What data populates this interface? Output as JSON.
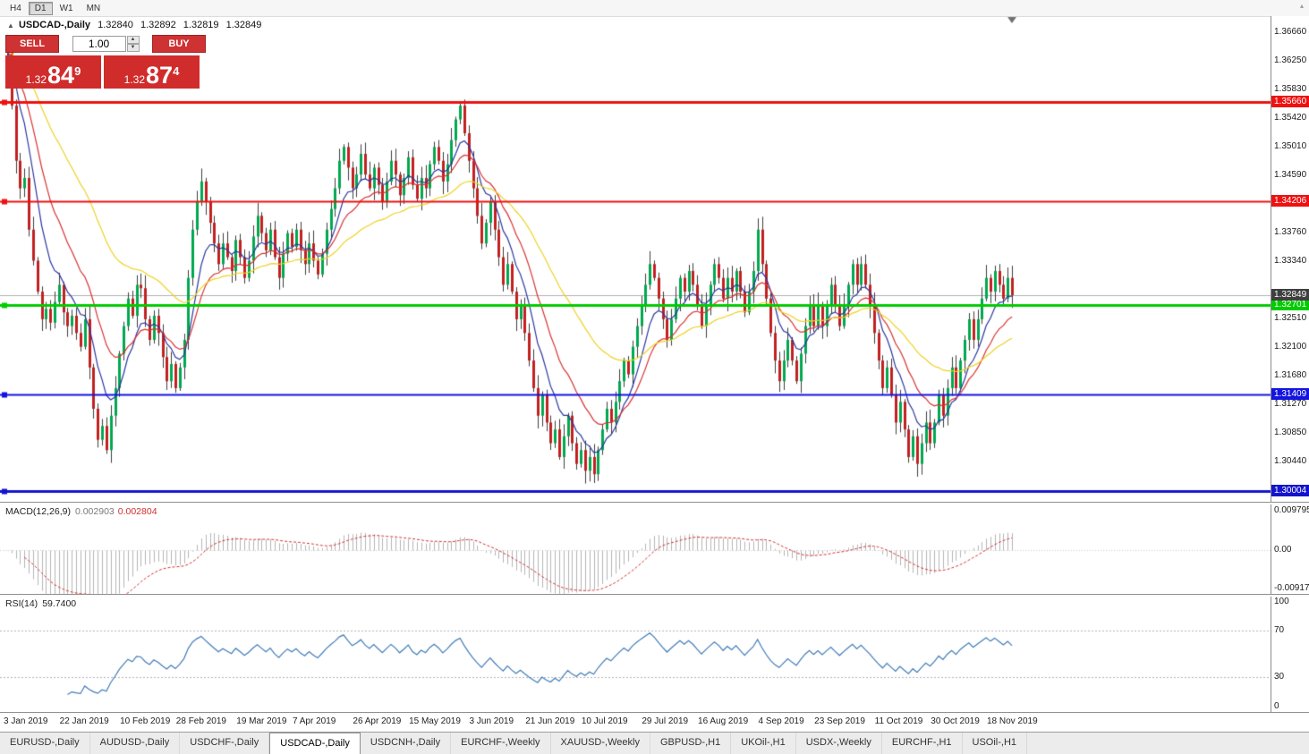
{
  "toolbar": {
    "timeframes": [
      {
        "label": "H4",
        "active": false
      },
      {
        "label": "D1",
        "active": true
      },
      {
        "label": "W1",
        "active": false
      },
      {
        "label": "MN",
        "active": false
      }
    ],
    "overflow_icon": "▴"
  },
  "chart_header": {
    "collapse_icon": "▲",
    "symbol": "USDCAD-,Daily",
    "open": "1.32840",
    "high": "1.32892",
    "low": "1.32819",
    "close": "1.32849"
  },
  "trade_panel": {
    "sell_label": "SELL",
    "buy_label": "BUY",
    "volume": "1.00",
    "spin_up_icon": "▲",
    "spin_down_icon": "▼",
    "sell_price_prefix": "1.32",
    "sell_price_big": "84",
    "sell_price_sup": "9",
    "buy_price_prefix": "1.32",
    "buy_price_big": "87",
    "buy_price_sup": "4"
  },
  "chart_data": {
    "type": "candlestick",
    "symbol": "USDCAD",
    "timeframe": "Daily",
    "up_color": "#00a84f",
    "down_color": "#c22020",
    "wick_color": "#3c3c3c",
    "price_range": {
      "top": 1.369,
      "bottom": 1.2985
    },
    "price_axis_ticks": [
      "1.36660",
      "1.36250",
      "1.35830",
      "1.35420",
      "1.35010",
      "1.34590",
      "1.33760",
      "1.33340",
      "1.32510",
      "1.32100",
      "1.31680",
      "1.31270",
      "1.30850",
      "1.30440"
    ],
    "price_lines": [
      {
        "price": 1.3566,
        "label": "1.35660",
        "color": "#ee1111",
        "width": 3
      },
      {
        "price": 1.34206,
        "label": "1.34206",
        "color": "#ee1111",
        "width": 2
      },
      {
        "price": 1.32701,
        "label": "1.32701",
        "color": "#00cc00",
        "width": 3
      },
      {
        "price": 1.31409,
        "label": "1.31409",
        "color": "#1414e0",
        "width": 2
      },
      {
        "price": 1.30004,
        "label": "1.30004",
        "color": "#1414cc",
        "width": 3
      }
    ],
    "current_price": {
      "value": 1.32849,
      "label": "1.32849",
      "line_color": "#b0b0b0",
      "badge_color": "#3f3f3f"
    },
    "ma": [
      {
        "period": 8,
        "type": "ema",
        "color": "#2a35a0"
      },
      {
        "period": 16,
        "type": "ema",
        "color": "#d93030"
      },
      {
        "period": 40,
        "type": "ema",
        "color": "#edd122"
      }
    ],
    "first_open": 1.3658,
    "closes": [
      1.364,
      1.356,
      1.348,
      1.344,
      1.3455,
      1.338,
      1.3335,
      1.329,
      1.325,
      1.3265,
      1.3245,
      1.3275,
      1.33,
      1.326,
      1.324,
      1.3255,
      1.323,
      1.321,
      1.325,
      1.318,
      1.312,
      1.3075,
      1.3095,
      1.306,
      1.311,
      1.315,
      1.32,
      1.324,
      1.328,
      1.3255,
      1.33,
      1.3295,
      1.325,
      1.322,
      1.3255,
      1.323,
      1.3195,
      1.316,
      1.3185,
      1.315,
      1.318,
      1.322,
      1.331,
      1.338,
      1.342,
      1.345,
      1.342,
      1.339,
      1.336,
      1.333,
      1.336,
      1.334,
      1.332,
      1.3365,
      1.334,
      1.331,
      1.3335,
      1.337,
      1.34,
      1.3375,
      1.335,
      1.338,
      1.334,
      1.331,
      1.3345,
      1.3375,
      1.3355,
      1.338,
      1.335,
      1.333,
      1.336,
      1.3335,
      1.3315,
      1.3345,
      1.338,
      1.341,
      1.344,
      1.348,
      1.35,
      1.347,
      1.344,
      1.346,
      1.349,
      1.346,
      1.344,
      1.347,
      1.3445,
      1.342,
      1.345,
      1.348,
      1.346,
      1.343,
      1.3455,
      1.3485,
      1.3445,
      1.3425,
      1.3455,
      1.344,
      1.3475,
      1.35,
      1.348,
      1.345,
      1.3475,
      1.351,
      1.354,
      1.356,
      1.352,
      1.348,
      1.344,
      1.34,
      1.336,
      1.339,
      1.342,
      1.338,
      1.334,
      1.33,
      1.333,
      1.329,
      1.325,
      1.327,
      1.323,
      1.319,
      1.315,
      1.311,
      1.314,
      1.31,
      1.307,
      1.309,
      1.305,
      1.308,
      1.311,
      1.307,
      1.304,
      1.306,
      1.303,
      1.305,
      1.3025,
      1.306,
      1.309,
      1.312,
      1.31,
      1.313,
      1.316,
      1.319,
      1.317,
      1.321,
      1.324,
      1.327,
      1.33,
      1.333,
      1.331,
      1.328,
      1.325,
      1.322,
      1.325,
      1.328,
      1.331,
      1.329,
      1.332,
      1.33,
      1.327,
      1.324,
      1.327,
      1.33,
      1.333,
      1.331,
      1.328,
      1.331,
      1.329,
      1.332,
      1.329,
      1.326,
      1.329,
      1.332,
      1.338,
      1.333,
      1.328,
      1.323,
      1.319,
      1.316,
      1.319,
      1.322,
      1.319,
      1.316,
      1.32,
      1.324,
      1.327,
      1.324,
      1.327,
      1.324,
      1.327,
      1.33,
      1.327,
      1.324,
      1.327,
      1.33,
      1.333,
      1.33,
      1.333,
      1.33,
      1.327,
      1.323,
      1.319,
      1.315,
      1.318,
      1.314,
      1.31,
      1.313,
      1.309,
      1.305,
      1.308,
      1.304,
      1.307,
      1.31,
      1.307,
      1.31,
      1.314,
      1.311,
      1.315,
      1.318,
      1.315,
      1.319,
      1.322,
      1.325,
      1.322,
      1.325,
      1.328,
      1.331,
      1.329,
      1.332,
      1.33,
      1.328,
      1.331,
      1.3285
    ],
    "date_labels": [
      {
        "idx": 0,
        "label": "3 Jan 2019"
      },
      {
        "idx": 13,
        "label": "22 Jan 2019"
      },
      {
        "idx": 27,
        "label": "10 Feb 2019"
      },
      {
        "idx": 40,
        "label": "28 Feb 2019"
      },
      {
        "idx": 54,
        "label": "19 Mar 2019"
      },
      {
        "idx": 67,
        "label": "7 Apr 2019"
      },
      {
        "idx": 81,
        "label": "26 Apr 2019"
      },
      {
        "idx": 94,
        "label": "15 May 2019"
      },
      {
        "idx": 108,
        "label": "3 Jun 2019"
      },
      {
        "idx": 121,
        "label": "21 Jun 2019"
      },
      {
        "idx": 134,
        "label": "10 Jul 2019"
      },
      {
        "idx": 148,
        "label": "29 Jul 2019"
      },
      {
        "idx": 161,
        "label": "16 Aug 2019"
      },
      {
        "idx": 175,
        "label": "4 Sep 2019"
      },
      {
        "idx": 188,
        "label": "23 Sep 2019"
      },
      {
        "idx": 202,
        "label": "11 Oct 2019"
      },
      {
        "idx": 215,
        "label": "30 Oct 2019"
      },
      {
        "idx": 228,
        "label": "18 Nov 2019"
      }
    ]
  },
  "macd_panel": {
    "title": "MACD(12,26,9)",
    "value_main": "0.002903",
    "value_signal": "0.002804",
    "params": {
      "fast": 12,
      "slow": 26,
      "signal": 9
    },
    "axis_labels": [
      "0.009795",
      "0.00",
      "-0.009178"
    ],
    "range": {
      "top": 0.009795,
      "bottom": -0.009178
    },
    "histogram_color": "#b4b4b4",
    "signal_color": "#cf3030"
  },
  "rsi_panel": {
    "title": "RSI(14)",
    "value": "59.7400",
    "period": 14,
    "levels": [
      70,
      30
    ],
    "axis_labels": [
      "100",
      "70",
      "30",
      "0"
    ],
    "line_color": "#3f7ab8"
  },
  "bottom_tabs": {
    "items": [
      {
        "label": "EURUSD-,Daily",
        "active": false
      },
      {
        "label": "AUDUSD-,Daily",
        "active": false
      },
      {
        "label": "USDCHF-,Daily",
        "active": false
      },
      {
        "label": "USDCAD-,Daily",
        "active": true
      },
      {
        "label": "USDCNH-,Daily",
        "active": false
      },
      {
        "label": "EURCHF-,Weekly",
        "active": false
      },
      {
        "label": "XAUUSD-,Weekly",
        "active": false
      },
      {
        "label": "GBPUSD-,H1",
        "active": false
      },
      {
        "label": "UKOil-,H1",
        "active": false
      },
      {
        "label": "USDX-,Weekly",
        "active": false
      },
      {
        "label": "EURCHF-,H1",
        "active": false
      },
      {
        "label": "USOil-,H1",
        "active": false
      }
    ]
  }
}
